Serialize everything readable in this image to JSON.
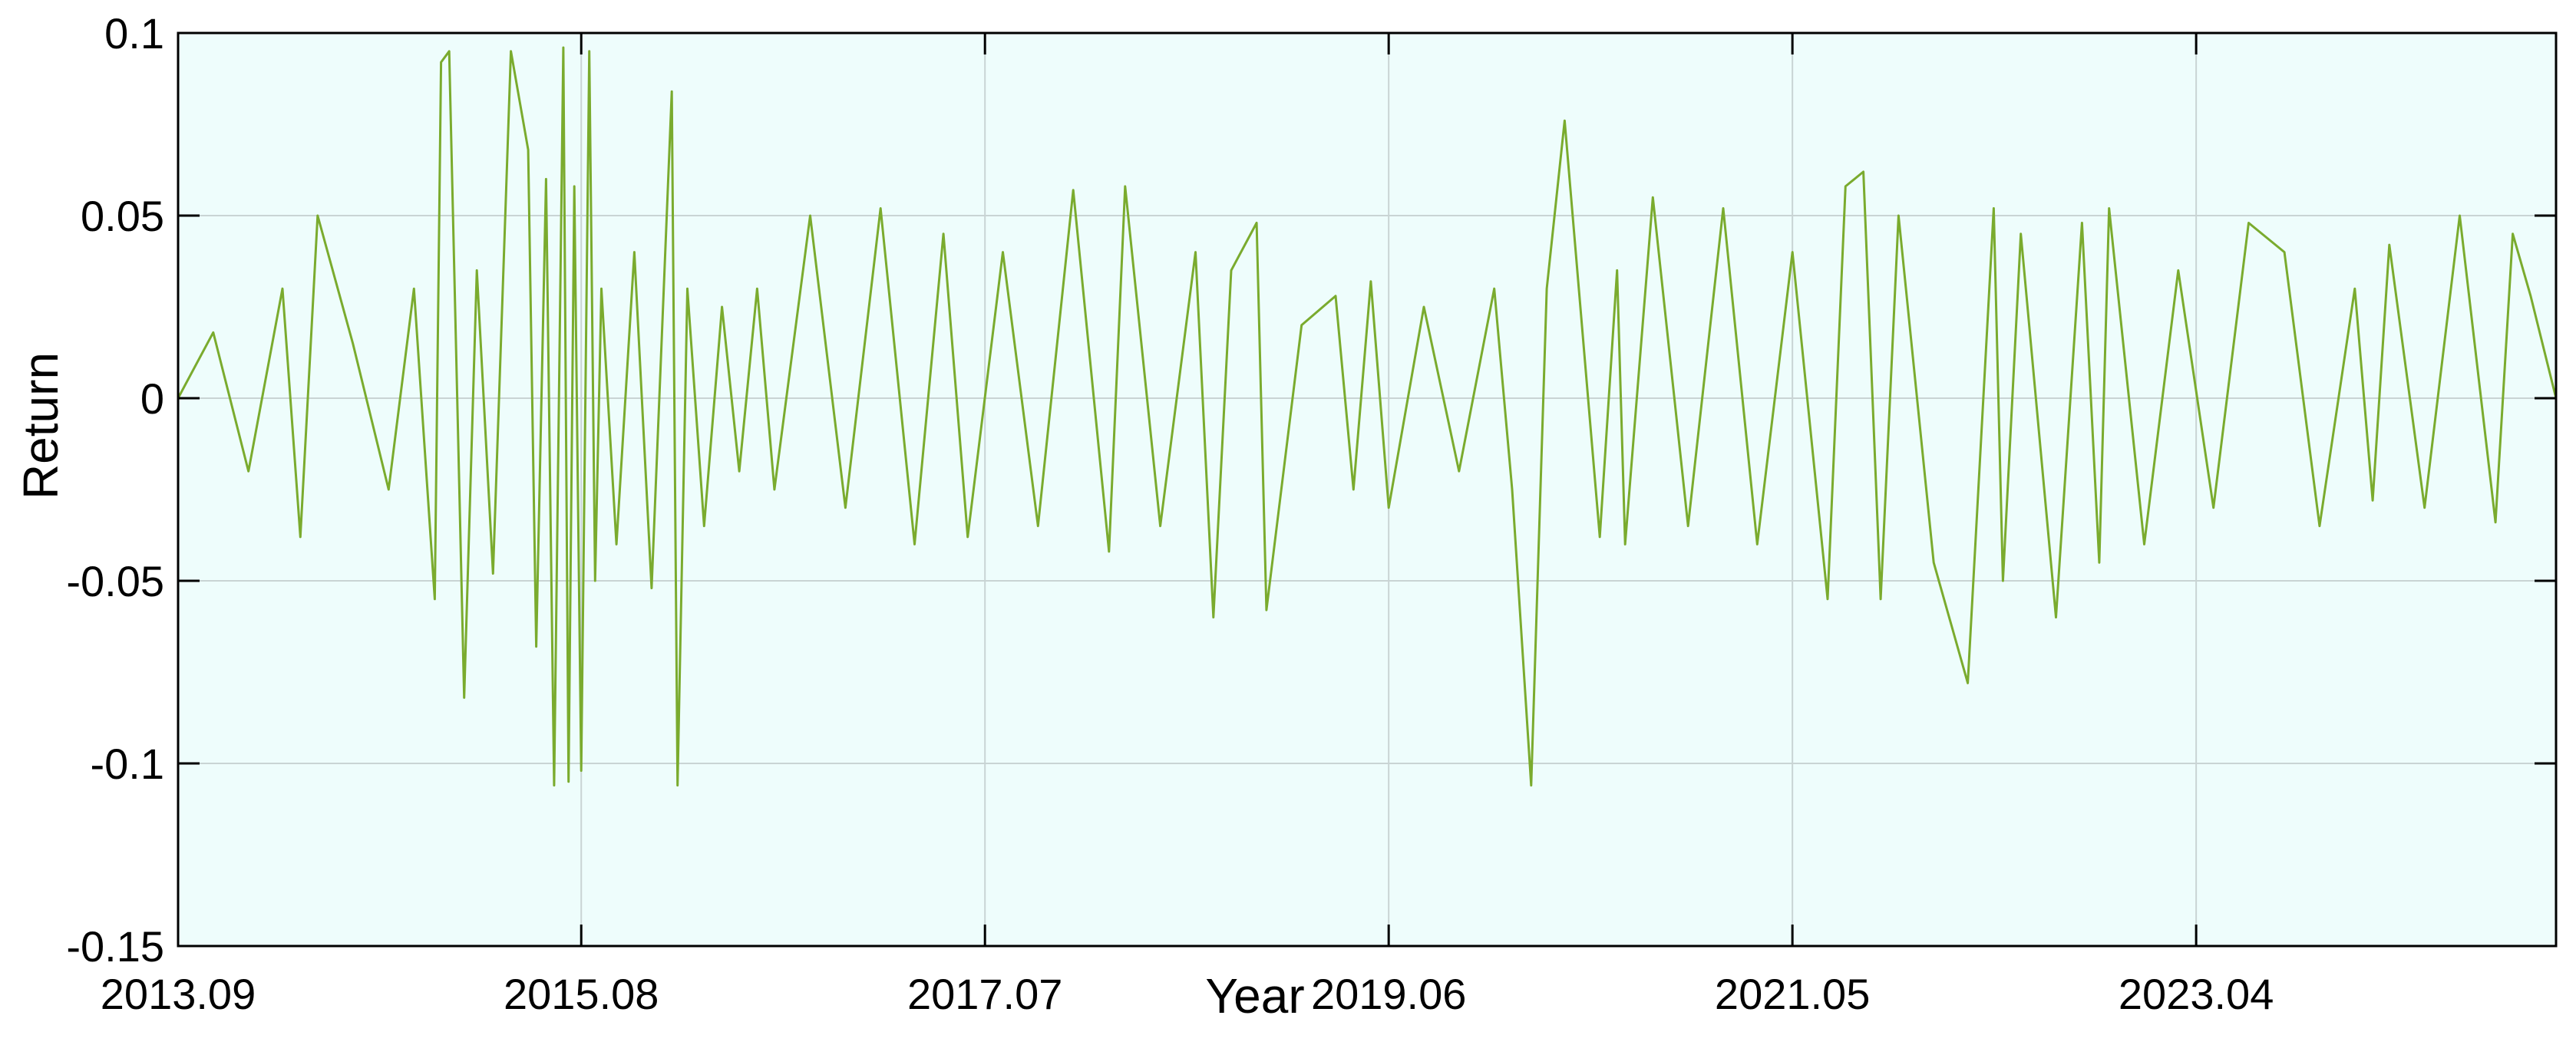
{
  "chart_data": {
    "type": "line",
    "title": "",
    "xlabel": "Year",
    "ylabel": "Return",
    "x_range": [
      "2013-09-01",
      "2024-12-15"
    ],
    "ylim": [
      -0.15,
      0.1
    ],
    "x_tick_labels": [
      "2013.09",
      "2015.08",
      "2017.07",
      "2019.06",
      "2021.05",
      "2023.04"
    ],
    "x_tick_dates": [
      "2013-09-01",
      "2015-08-01",
      "2017-07-01",
      "2019-06-01",
      "2021-05-01",
      "2023-04-01"
    ],
    "y_ticks": [
      -0.15,
      -0.1,
      -0.05,
      0,
      0.05,
      0.1
    ],
    "y_tick_labels": [
      "-0.15",
      "-0.1",
      "-0.05",
      "0",
      "0.05",
      "0.1"
    ],
    "grid": true,
    "legend": "none",
    "series": [
      {
        "name": "",
        "color": "#7aab2e",
        "x": [
          "2013-09-01",
          "2013-11-01",
          "2014-01-01",
          "2014-03-01",
          "2014-04-01",
          "2014-05-01",
          "2014-07-01",
          "2014-09-01",
          "2014-10-15",
          "2014-11-20",
          "2014-12-01",
          "2014-12-15",
          "2015-01-10",
          "2015-02-01",
          "2015-03-01",
          "2015-04-01",
          "2015-05-01",
          "2015-05-15",
          "2015-06-01",
          "2015-06-15",
          "2015-07-01",
          "2015-07-10",
          "2015-07-20",
          "2015-08-01",
          "2015-08-15",
          "2015-08-25",
          "2015-09-05",
          "2015-10-01",
          "2015-11-01",
          "2015-12-01",
          "2016-01-05",
          "2016-01-15",
          "2016-02-01",
          "2016-03-01",
          "2016-04-01",
          "2016-05-01",
          "2016-06-01",
          "2016-07-01",
          "2016-09-01",
          "2016-11-01",
          "2017-01-01",
          "2017-03-01",
          "2017-04-20",
          "2017-06-01",
          "2017-08-01",
          "2017-10-01",
          "2017-12-01",
          "2018-02-01",
          "2018-03-01",
          "2018-05-01",
          "2018-07-01",
          "2018-08-01",
          "2018-09-01",
          "2018-10-15",
          "2018-11-01",
          "2019-01-01",
          "2019-03-01",
          "2019-04-01",
          "2019-05-01",
          "2019-06-01",
          "2019-08-01",
          "2019-10-01",
          "2019-12-01",
          "2020-01-01",
          "2020-02-03",
          "2020-03-01",
          "2020-04-01",
          "2020-06-01",
          "2020-07-01",
          "2020-07-15",
          "2020-09-01",
          "2020-11-01",
          "2021-01-01",
          "2021-03-01",
          "2021-05-01",
          "2021-07-01",
          "2021-08-01",
          "2021-09-01",
          "2021-10-01",
          "2021-11-01",
          "2022-01-01",
          "2022-03-01",
          "2022-04-15",
          "2022-05-01",
          "2022-06-01",
          "2022-08-01",
          "2022-09-15",
          "2022-10-15",
          "2022-11-01",
          "2023-01-01",
          "2023-03-01",
          "2023-05-01",
          "2023-07-01",
          "2023-09-01",
          "2023-11-01",
          "2024-01-01",
          "2024-02-01",
          "2024-03-01",
          "2024-05-01",
          "2024-07-01",
          "2024-09-01",
          "2024-10-01",
          "2024-11-01",
          "2024-12-15"
        ],
        "values": [
          0.0,
          0.018,
          -0.02,
          0.03,
          -0.038,
          0.05,
          0.015,
          -0.025,
          0.03,
          -0.055,
          0.092,
          0.095,
          -0.082,
          0.035,
          -0.048,
          0.095,
          0.068,
          -0.068,
          0.06,
          -0.106,
          0.096,
          -0.105,
          0.058,
          -0.102,
          0.095,
          -0.05,
          0.03,
          -0.04,
          0.04,
          -0.052,
          0.084,
          -0.106,
          0.03,
          -0.035,
          0.025,
          -0.02,
          0.03,
          -0.025,
          0.05,
          -0.03,
          0.052,
          -0.04,
          0.045,
          -0.038,
          0.04,
          -0.035,
          0.057,
          -0.042,
          0.058,
          -0.035,
          0.04,
          -0.06,
          0.035,
          0.048,
          -0.058,
          0.02,
          0.028,
          -0.025,
          0.032,
          -0.03,
          0.025,
          -0.02,
          0.03,
          -0.025,
          -0.106,
          0.03,
          0.076,
          -0.038,
          0.035,
          -0.04,
          0.055,
          -0.035,
          0.052,
          -0.04,
          0.04,
          -0.055,
          0.058,
          0.062,
          -0.055,
          0.05,
          -0.045,
          -0.078,
          0.052,
          -0.05,
          0.045,
          -0.06,
          0.048,
          -0.045,
          0.052,
          -0.04,
          0.035,
          -0.03,
          0.048,
          0.04,
          -0.035,
          0.03,
          -0.028,
          0.042,
          -0.03,
          0.05,
          -0.034,
          0.045,
          0.028,
          0.0
        ]
      }
    ]
  }
}
